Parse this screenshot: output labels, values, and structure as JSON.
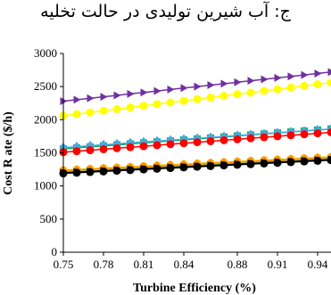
{
  "chart_data": {
    "type": "line",
    "title": "ج: آب شیرین تولیدی در حالت تخلیه",
    "xlabel": "Turbine Efficiency (%)",
    "ylabel": "Cost R ate ($/h)",
    "xlim": [
      0.75,
      0.95
    ],
    "ylim": [
      0,
      3000
    ],
    "xticks": [
      "0.75",
      "0.78",
      "0.81",
      "0.84",
      "0.88",
      "0.91",
      "0.94"
    ],
    "yticks": [
      "0",
      "500",
      "1000",
      "1500",
      "2000",
      "2500",
      "3000"
    ],
    "grid": false,
    "x": [
      0.75,
      0.76,
      0.77,
      0.78,
      0.79,
      0.8,
      0.81,
      0.82,
      0.83,
      0.84,
      0.85,
      0.86,
      0.87,
      0.88,
      0.89,
      0.9,
      0.91,
      0.92,
      0.93,
      0.94,
      0.95
    ],
    "series": [
      {
        "color": "#7030a0",
        "marker": "triangle-right",
        "values": [
          2280,
          2302,
          2324,
          2346,
          2368,
          2390,
          2412,
          2434,
          2456,
          2478,
          2500,
          2522,
          2544,
          2566,
          2588,
          2610,
          2632,
          2654,
          2676,
          2698,
          2720
        ]
      },
      {
        "color": "#ffff00",
        "marker": "circle",
        "values": [
          2060,
          2085,
          2110,
          2135,
          2160,
          2185,
          2210,
          2235,
          2260,
          2285,
          2310,
          2335,
          2360,
          2385,
          2410,
          2435,
          2460,
          2485,
          2510,
          2535,
          2560
        ]
      },
      {
        "color": "#00b050",
        "marker": "square",
        "values": [
          1560,
          1575,
          1590,
          1605,
          1620,
          1635,
          1650,
          1665,
          1680,
          1695,
          1710,
          1725,
          1740,
          1755,
          1770,
          1785,
          1800,
          1815,
          1830,
          1845,
          1860
        ]
      },
      {
        "color": "#4aa8e0",
        "marker": "diamond",
        "values": [
          1580,
          1594,
          1608,
          1622,
          1636,
          1650,
          1664,
          1678,
          1692,
          1706,
          1720,
          1734,
          1748,
          1762,
          1776,
          1790,
          1804,
          1818,
          1832,
          1846,
          1860
        ]
      },
      {
        "color": "#ff0000",
        "marker": "circle",
        "values": [
          1510,
          1525,
          1540,
          1555,
          1570,
          1585,
          1600,
          1615,
          1630,
          1645,
          1660,
          1675,
          1690,
          1705,
          1720,
          1735,
          1750,
          1765,
          1780,
          1795,
          1810
        ]
      },
      {
        "color": "#f0c020",
        "marker": "circle",
        "values": [
          1240,
          1250,
          1260,
          1270,
          1280,
          1290,
          1300,
          1310,
          1320,
          1330,
          1340,
          1350,
          1360,
          1370,
          1380,
          1390,
          1400,
          1410,
          1420,
          1430,
          1440
        ]
      },
      {
        "color": "#92d050",
        "marker": "triangle-up",
        "values": [
          1220,
          1230,
          1240,
          1250,
          1260,
          1270,
          1280,
          1290,
          1300,
          1310,
          1320,
          1330,
          1340,
          1350,
          1360,
          1370,
          1380,
          1390,
          1400,
          1410,
          1420
        ]
      },
      {
        "color": "#ff8c00",
        "marker": "diamond",
        "values": [
          1230,
          1240,
          1250,
          1260,
          1270,
          1280,
          1290,
          1300,
          1310,
          1320,
          1330,
          1340,
          1350,
          1360,
          1370,
          1380,
          1390,
          1400,
          1410,
          1420,
          1430
        ]
      },
      {
        "color": "#000000",
        "marker": "triangle-right",
        "values": [
          1200,
          1210,
          1220,
          1230,
          1240,
          1250,
          1260,
          1270,
          1280,
          1290,
          1300,
          1310,
          1320,
          1330,
          1340,
          1350,
          1360,
          1370,
          1380,
          1390,
          1400
        ]
      },
      {
        "color": "#000000",
        "marker": "circle",
        "values": [
          1190,
          1200,
          1210,
          1220,
          1230,
          1240,
          1250,
          1260,
          1270,
          1280,
          1290,
          1300,
          1310,
          1320,
          1330,
          1340,
          1350,
          1360,
          1370,
          1380,
          1390
        ]
      }
    ]
  }
}
